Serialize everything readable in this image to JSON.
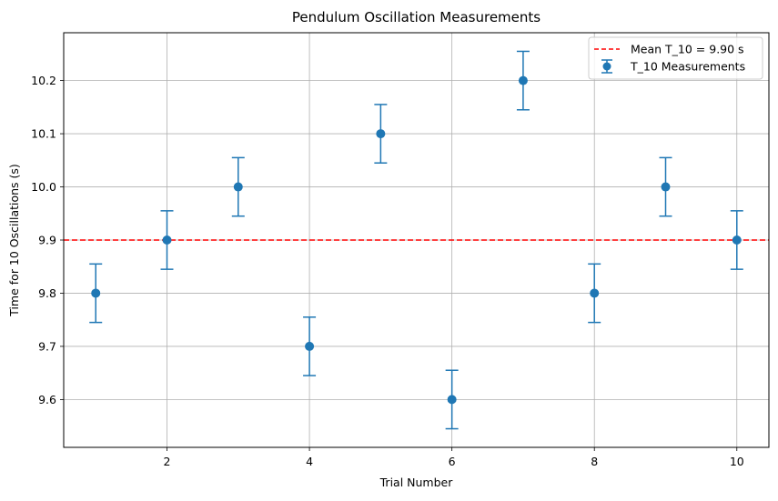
{
  "chart_data": {
    "type": "scatter",
    "title": "Pendulum Oscillation Measurements",
    "xlabel": "Trial Number",
    "ylabel": "Time for 10 Oscillations (s)",
    "xlim": [
      0.55,
      10.45
    ],
    "ylim": [
      9.51,
      10.29
    ],
    "xticks": [
      2,
      4,
      6,
      8,
      10
    ],
    "yticks": [
      9.6,
      9.7,
      9.8,
      9.9,
      10.0,
      10.1,
      10.2
    ],
    "xtick_labels": [
      "2",
      "4",
      "6",
      "8",
      "10"
    ],
    "ytick_labels": [
      "9.6",
      "9.7",
      "9.8",
      "9.9",
      "10.0",
      "10.1",
      "10.2"
    ],
    "grid": true,
    "legend_position": "top-right",
    "series": [
      {
        "name": "T_10 Measurements",
        "color": "#1f77b4",
        "marker": "circle",
        "x": [
          1,
          2,
          3,
          4,
          5,
          6,
          7,
          8,
          9,
          10
        ],
        "y": [
          9.8,
          9.9,
          10.0,
          9.7,
          10.1,
          9.6,
          10.2,
          9.8,
          10.0,
          9.9
        ],
        "yerr": 0.055
      }
    ],
    "reference_lines": [
      {
        "name": "Mean T_10 = 9.90 s",
        "y": 9.9,
        "color": "#ff0000",
        "style": "dashed"
      }
    ]
  }
}
